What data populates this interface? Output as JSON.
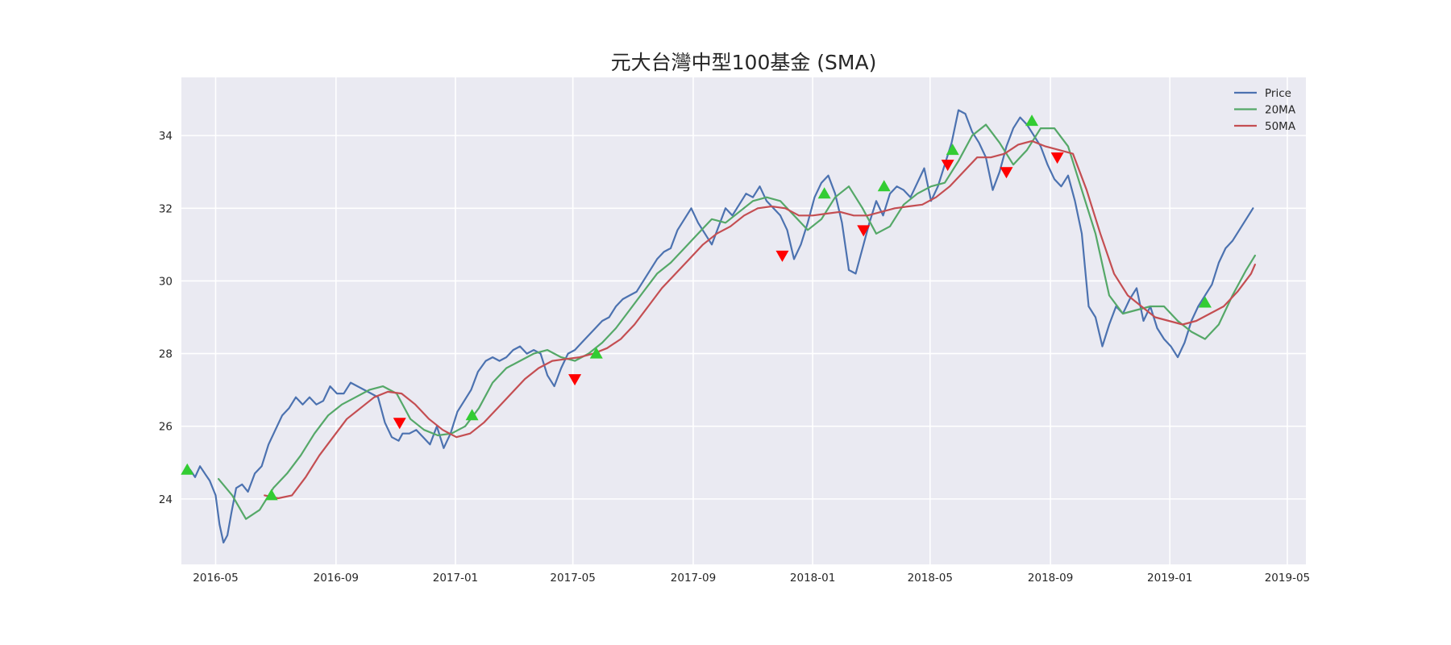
{
  "chart_data": {
    "type": "line",
    "title": "元大台灣中型100基金 (SMA)",
    "xlabel": "",
    "ylabel": "",
    "x_range": [
      "2016-03-27",
      "2019-05-20"
    ],
    "ylim": [
      22.2,
      35.6
    ],
    "grid": true,
    "legend_position": "top-right",
    "x_ticks": [
      "2016-05",
      "2016-09",
      "2017-01",
      "2017-05",
      "2017-09",
      "2018-01",
      "2018-05",
      "2018-09",
      "2019-01",
      "2019-05"
    ],
    "y_ticks": [
      24,
      26,
      28,
      30,
      32,
      34
    ],
    "colors": {
      "Price": "#4c72b0",
      "20MA": "#55a868",
      "50MA": "#c44e52",
      "buy": "#33cc33",
      "sell": "#ff0000",
      "plot_bg": "#eaeaf2",
      "grid": "#ffffff"
    },
    "series": [
      {
        "name": "Price",
        "x": [
          "2016-04-05",
          "2016-04-10",
          "2016-04-15",
          "2016-04-20",
          "2016-04-25",
          "2016-05-01",
          "2016-05-05",
          "2016-05-09",
          "2016-05-13",
          "2016-05-17",
          "2016-05-22",
          "2016-05-28",
          "2016-06-03",
          "2016-06-10",
          "2016-06-17",
          "2016-06-24",
          "2016-07-01",
          "2016-07-08",
          "2016-07-15",
          "2016-07-22",
          "2016-07-29",
          "2016-08-05",
          "2016-08-12",
          "2016-08-19",
          "2016-08-26",
          "2016-09-02",
          "2016-09-09",
          "2016-09-16",
          "2016-09-23",
          "2016-09-30",
          "2016-10-07",
          "2016-10-14",
          "2016-10-21",
          "2016-10-28",
          "2016-11-04",
          "2016-11-08",
          "2016-11-15",
          "2016-11-22",
          "2016-11-29",
          "2016-12-06",
          "2016-12-13",
          "2016-12-20",
          "2016-12-27",
          "2017-01-03",
          "2017-01-10",
          "2017-01-17",
          "2017-01-24",
          "2017-02-01",
          "2017-02-08",
          "2017-02-15",
          "2017-02-22",
          "2017-03-01",
          "2017-03-08",
          "2017-03-15",
          "2017-03-22",
          "2017-03-29",
          "2017-04-05",
          "2017-04-12",
          "2017-04-19",
          "2017-04-26",
          "2017-05-03",
          "2017-05-10",
          "2017-05-17",
          "2017-05-24",
          "2017-05-31",
          "2017-06-07",
          "2017-06-14",
          "2017-06-21",
          "2017-06-28",
          "2017-07-05",
          "2017-07-12",
          "2017-07-19",
          "2017-07-26",
          "2017-08-02",
          "2017-08-09",
          "2017-08-16",
          "2017-08-23",
          "2017-08-30",
          "2017-09-06",
          "2017-09-13",
          "2017-09-20",
          "2017-09-27",
          "2017-10-04",
          "2017-10-11",
          "2017-10-18",
          "2017-10-25",
          "2017-11-01",
          "2017-11-08",
          "2017-11-15",
          "2017-11-22",
          "2017-11-29",
          "2017-12-06",
          "2017-12-13",
          "2017-12-20",
          "2017-12-27",
          "2018-01-03",
          "2018-01-10",
          "2018-01-17",
          "2018-01-24",
          "2018-01-31",
          "2018-02-07",
          "2018-02-14",
          "2018-02-21",
          "2018-02-28",
          "2018-03-07",
          "2018-03-14",
          "2018-03-21",
          "2018-03-28",
          "2018-04-04",
          "2018-04-11",
          "2018-04-18",
          "2018-04-25",
          "2018-05-02",
          "2018-05-09",
          "2018-05-16",
          "2018-05-23",
          "2018-05-30",
          "2018-06-06",
          "2018-06-13",
          "2018-06-20",
          "2018-06-27",
          "2018-07-04",
          "2018-07-11",
          "2018-07-18",
          "2018-07-25",
          "2018-08-01",
          "2018-08-08",
          "2018-08-15",
          "2018-08-22",
          "2018-08-29",
          "2018-09-05",
          "2018-09-12",
          "2018-09-19",
          "2018-09-26",
          "2018-10-03",
          "2018-10-10",
          "2018-10-17",
          "2018-10-24",
          "2018-10-31",
          "2018-11-07",
          "2018-11-14",
          "2018-11-21",
          "2018-11-28",
          "2018-12-05",
          "2018-12-12",
          "2018-12-19",
          "2018-12-26",
          "2019-01-02",
          "2019-01-09",
          "2019-01-16",
          "2019-01-23",
          "2019-01-30",
          "2019-02-06",
          "2019-02-13",
          "2019-02-20",
          "2019-02-27",
          "2019-03-06",
          "2019-03-13",
          "2019-03-20",
          "2019-03-27"
        ],
        "values": [
          24.8,
          24.6,
          24.9,
          24.7,
          24.5,
          24.1,
          23.3,
          22.8,
          23.0,
          23.6,
          24.3,
          24.4,
          24.2,
          24.7,
          24.9,
          25.5,
          25.9,
          26.3,
          26.5,
          26.8,
          26.6,
          26.8,
          26.6,
          26.7,
          27.1,
          26.9,
          26.9,
          27.2,
          27.1,
          27.0,
          26.9,
          26.8,
          26.1,
          25.7,
          25.6,
          25.8,
          25.8,
          25.9,
          25.7,
          25.5,
          26.0,
          25.4,
          25.8,
          26.4,
          26.7,
          27.0,
          27.5,
          27.8,
          27.9,
          27.8,
          27.9,
          28.1,
          28.2,
          28.0,
          28.1,
          28.0,
          27.4,
          27.1,
          27.6,
          28.0,
          28.1,
          28.3,
          28.5,
          28.7,
          28.9,
          29.0,
          29.3,
          29.5,
          29.6,
          29.7,
          30.0,
          30.3,
          30.6,
          30.8,
          30.9,
          31.4,
          31.7,
          32.0,
          31.6,
          31.3,
          31.0,
          31.5,
          32.0,
          31.8,
          32.1,
          32.4,
          32.3,
          32.6,
          32.2,
          32.0,
          31.8,
          31.4,
          30.6,
          31.0,
          31.6,
          32.3,
          32.7,
          32.9,
          32.4,
          31.6,
          30.3,
          30.2,
          30.9,
          31.6,
          32.2,
          31.8,
          32.4,
          32.6,
          32.5,
          32.3,
          32.7,
          33.1,
          32.2,
          32.6,
          33.2,
          33.8,
          34.7,
          34.6,
          34.1,
          33.8,
          33.4,
          32.5,
          33.0,
          33.7,
          34.2,
          34.5,
          34.3,
          34.0,
          33.7,
          33.2,
          32.8,
          32.6,
          32.9,
          32.2,
          31.3,
          29.3,
          29.0,
          28.2,
          28.8,
          29.3,
          29.1,
          29.5,
          29.8,
          28.9,
          29.3,
          28.7,
          28.4,
          28.2,
          27.9,
          28.3,
          28.9,
          29.3,
          29.6,
          29.9,
          30.5,
          30.9,
          31.1,
          31.4,
          31.7,
          32.0
        ]
      },
      {
        "name": "20MA",
        "x": [
          "2016-05-04",
          "2016-05-18",
          "2016-06-01",
          "2016-06-15",
          "2016-06-29",
          "2016-07-13",
          "2016-07-27",
          "2016-08-10",
          "2016-08-24",
          "2016-09-07",
          "2016-09-21",
          "2016-10-05",
          "2016-10-19",
          "2016-11-02",
          "2016-11-16",
          "2016-11-30",
          "2016-12-14",
          "2016-12-28",
          "2017-01-11",
          "2017-01-25",
          "2017-02-08",
          "2017-02-22",
          "2017-03-08",
          "2017-03-22",
          "2017-04-05",
          "2017-04-19",
          "2017-05-03",
          "2017-05-17",
          "2017-05-31",
          "2017-06-14",
          "2017-06-28",
          "2017-07-12",
          "2017-07-26",
          "2017-08-09",
          "2017-08-23",
          "2017-09-06",
          "2017-09-20",
          "2017-10-04",
          "2017-10-18",
          "2017-11-01",
          "2017-11-15",
          "2017-11-29",
          "2017-12-13",
          "2017-12-27",
          "2018-01-10",
          "2018-01-24",
          "2018-02-07",
          "2018-02-21",
          "2018-03-07",
          "2018-03-21",
          "2018-04-04",
          "2018-04-18",
          "2018-05-02",
          "2018-05-16",
          "2018-05-30",
          "2018-06-13",
          "2018-06-27",
          "2018-07-11",
          "2018-07-25",
          "2018-08-08",
          "2018-08-22",
          "2018-09-05",
          "2018-09-19",
          "2018-10-03",
          "2018-10-17",
          "2018-10-31",
          "2018-11-14",
          "2018-11-28",
          "2018-12-12",
          "2018-12-26",
          "2019-01-09",
          "2019-01-23",
          "2019-02-06",
          "2019-02-20",
          "2019-03-06",
          "2019-03-20",
          "2019-03-29"
        ],
        "values": [
          24.55,
          24.1,
          23.45,
          23.7,
          24.3,
          24.7,
          25.2,
          25.8,
          26.3,
          26.6,
          26.8,
          27.0,
          27.1,
          26.9,
          26.2,
          25.9,
          25.75,
          25.8,
          26.0,
          26.5,
          27.2,
          27.6,
          27.8,
          28.0,
          28.1,
          27.9,
          27.8,
          28.0,
          28.3,
          28.7,
          29.2,
          29.7,
          30.2,
          30.5,
          30.9,
          31.3,
          31.7,
          31.6,
          31.9,
          32.2,
          32.3,
          32.2,
          31.8,
          31.4,
          31.7,
          32.3,
          32.6,
          32.0,
          31.3,
          31.5,
          32.1,
          32.4,
          32.6,
          32.7,
          33.3,
          34.0,
          34.3,
          33.8,
          33.2,
          33.6,
          34.2,
          34.2,
          33.7,
          32.5,
          31.3,
          29.6,
          29.1,
          29.2,
          29.3,
          29.3,
          28.9,
          28.6,
          28.4,
          28.8,
          29.6,
          30.3,
          30.7
        ]
      },
      {
        "name": "50MA",
        "x": [
          "2016-06-20",
          "2016-07-04",
          "2016-07-18",
          "2016-08-01",
          "2016-08-15",
          "2016-08-29",
          "2016-09-12",
          "2016-09-26",
          "2016-10-10",
          "2016-10-24",
          "2016-11-07",
          "2016-11-21",
          "2016-12-05",
          "2016-12-19",
          "2017-01-02",
          "2017-01-16",
          "2017-01-30",
          "2017-02-13",
          "2017-02-27",
          "2017-03-13",
          "2017-03-27",
          "2017-04-10",
          "2017-04-24",
          "2017-05-08",
          "2017-05-22",
          "2017-06-05",
          "2017-06-19",
          "2017-07-03",
          "2017-07-17",
          "2017-07-31",
          "2017-08-14",
          "2017-08-28",
          "2017-09-11",
          "2017-09-25",
          "2017-10-09",
          "2017-10-23",
          "2017-11-06",
          "2017-11-20",
          "2017-12-04",
          "2017-12-18",
          "2018-01-01",
          "2018-01-15",
          "2018-01-29",
          "2018-02-12",
          "2018-02-26",
          "2018-03-12",
          "2018-03-26",
          "2018-04-09",
          "2018-04-23",
          "2018-05-07",
          "2018-05-21",
          "2018-06-04",
          "2018-06-18",
          "2018-07-02",
          "2018-07-16",
          "2018-07-30",
          "2018-08-13",
          "2018-08-27",
          "2018-09-10",
          "2018-09-24",
          "2018-10-08",
          "2018-10-22",
          "2018-11-05",
          "2018-11-19",
          "2018-12-03",
          "2018-12-17",
          "2018-12-31",
          "2019-01-14",
          "2019-01-28",
          "2019-02-11",
          "2019-02-25",
          "2019-03-11",
          "2019-03-25",
          "2019-03-29"
        ],
        "values": [
          24.1,
          24.02,
          24.1,
          24.6,
          25.2,
          25.7,
          26.2,
          26.5,
          26.8,
          26.95,
          26.9,
          26.6,
          26.2,
          25.9,
          25.7,
          25.8,
          26.1,
          26.5,
          26.9,
          27.3,
          27.6,
          27.8,
          27.85,
          27.9,
          28.0,
          28.15,
          28.4,
          28.8,
          29.3,
          29.8,
          30.2,
          30.6,
          31.0,
          31.3,
          31.5,
          31.8,
          32.0,
          32.05,
          32.0,
          31.8,
          31.8,
          31.85,
          31.9,
          31.8,
          31.8,
          31.9,
          32.0,
          32.05,
          32.1,
          32.3,
          32.6,
          33.0,
          33.4,
          33.4,
          33.5,
          33.75,
          33.85,
          33.7,
          33.6,
          33.5,
          32.5,
          31.3,
          30.2,
          29.6,
          29.3,
          29.0,
          28.9,
          28.8,
          28.9,
          29.1,
          29.3,
          29.7,
          30.2,
          30.45
        ]
      }
    ],
    "signals": {
      "buy": {
        "x": [
          "2016-04-02",
          "2016-06-27",
          "2017-01-18",
          "2017-05-25",
          "2018-01-13",
          "2018-03-15",
          "2018-05-24",
          "2018-08-13",
          "2019-02-06"
        ],
        "y": [
          24.8,
          24.1,
          26.3,
          28.0,
          32.4,
          32.6,
          33.6,
          34.4,
          29.4
        ]
      },
      "sell": {
        "x": [
          "2016-11-05",
          "2017-05-03",
          "2017-12-01",
          "2018-02-22",
          "2018-05-19",
          "2018-07-18",
          "2018-09-08"
        ],
        "y": [
          26.1,
          27.3,
          30.7,
          31.4,
          33.2,
          33.0,
          33.4
        ]
      }
    }
  }
}
